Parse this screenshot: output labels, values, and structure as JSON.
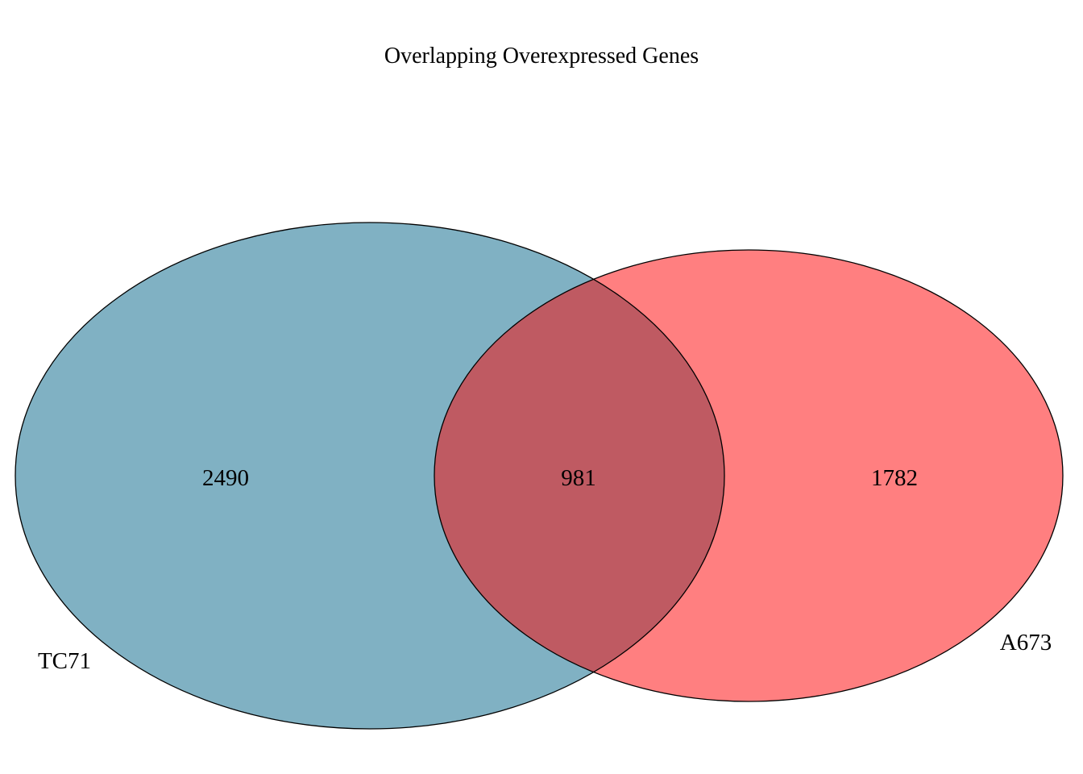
{
  "diagram": {
    "title": "Overlapping Overexpressed Genes",
    "sets": [
      {
        "name": "TC71",
        "only_count": "2490",
        "color": "#80b1c3"
      },
      {
        "name": "A673",
        "only_count": "1782",
        "color": "#ff7f80"
      }
    ],
    "intersection": {
      "count": "981",
      "color": "#bf5a62"
    },
    "outline_color": "#000000"
  }
}
